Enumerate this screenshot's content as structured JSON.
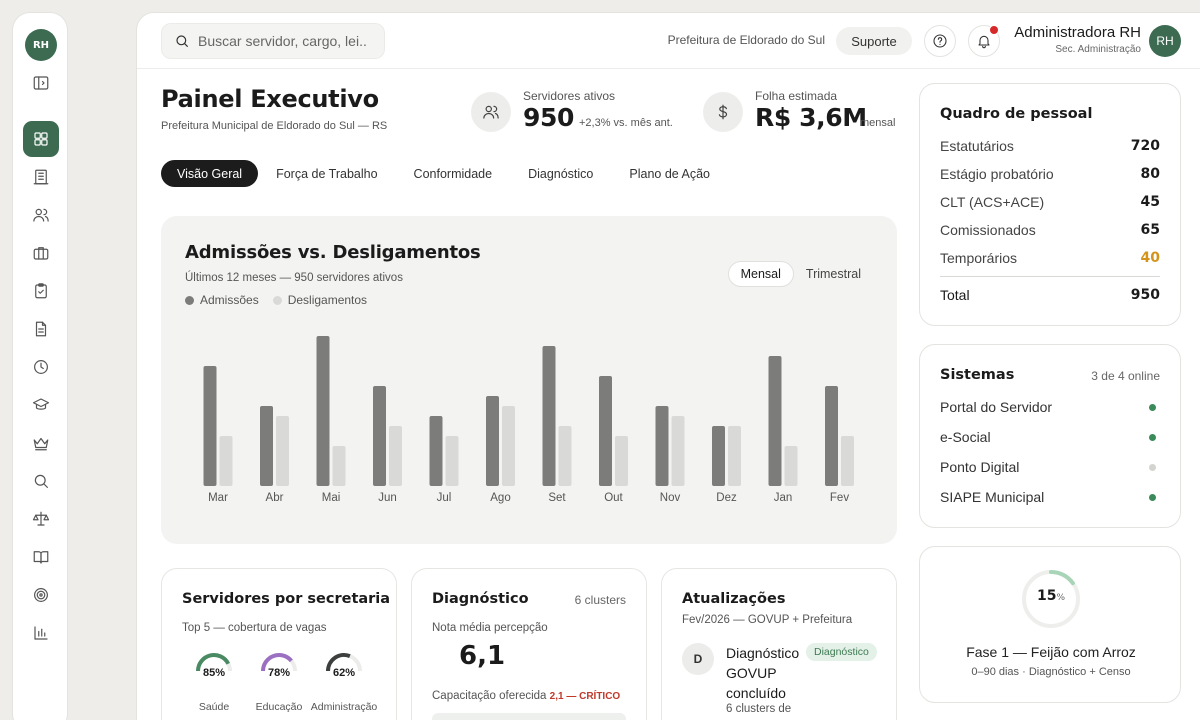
{
  "rail": {
    "avatar": "RH",
    "icons": [
      "sidebar-toggle-icon",
      "dashboard-icon",
      "building-icon",
      "users-icon",
      "briefcase-icon",
      "clipboard-check-icon",
      "document-icon",
      "clock-icon",
      "graduation-cap-icon",
      "crown-icon",
      "search-icon",
      "scale-icon",
      "book-icon",
      "target-icon",
      "bar-chart-icon"
    ]
  },
  "topbar": {
    "search_placeholder": "Buscar servidor, cargo, lei...",
    "municipality": "Prefeitura de Eldorado do Sul",
    "support_label": "Suporte",
    "user_name": "Administradora RH",
    "user_role": "Sec. Administração",
    "user_initials": "RH"
  },
  "header": {
    "title": "Painel Executivo",
    "subtitle": "Prefeitura Municipal de Eldorado do Sul — RS",
    "kpi_active": {
      "label": "Servidores ativos",
      "value": "950",
      "note": "+2,3% vs. mês ant."
    },
    "kpi_payroll": {
      "label": "Folha estimada",
      "value": "R$ 3,6M",
      "note": "mensal"
    }
  },
  "tabs": [
    "Visão Geral",
    "Força de Trabalho",
    "Conformidade",
    "Diagnóstico",
    "Plano de Ação"
  ],
  "chart_card": {
    "title": "Admissões vs. Desligamentos",
    "subtitle": "Últimos 12 meses — 950 servidores ativos",
    "toggle": {
      "active": "Mensal",
      "other": "Trimestral"
    }
  },
  "chart_data": {
    "type": "bar",
    "title": "Admissões vs. Desligamentos",
    "categories": [
      "Mar",
      "Abr",
      "Mai",
      "Jun",
      "Jul",
      "Ago",
      "Set",
      "Out",
      "Nov",
      "Dez",
      "Jan",
      "Fev"
    ],
    "series": [
      {
        "name": "Admissões",
        "color": "#7c7d7b",
        "values": [
          12,
          8,
          15,
          10,
          7,
          9,
          14,
          11,
          8,
          6,
          13,
          10
        ]
      },
      {
        "name": "Desligamentos",
        "color": "#d9dad8",
        "values": [
          5,
          7,
          4,
          6,
          5,
          8,
          6,
          5,
          7,
          6,
          4,
          5
        ]
      }
    ],
    "ylim": [
      0,
      15
    ],
    "grid": false,
    "legend": "top-left"
  },
  "secretarias": {
    "title": "Servidores por secretaria",
    "subtitle": "Top 5 — cobertura de vagas",
    "items": [
      {
        "name": "Saúde",
        "pct": "85%",
        "value": 0.85,
        "color": "#4a8a63"
      },
      {
        "name": "Educação",
        "pct": "78%",
        "value": 0.78,
        "color": "#9b6fc2"
      },
      {
        "name": "Administração",
        "pct": "62%",
        "value": 0.62,
        "color": "#3c3f3d"
      }
    ]
  },
  "diagnostico": {
    "title": "Diagnóstico",
    "meta": "6 clusters",
    "avg_label": "Nota média percepção",
    "avg_value": "6,1",
    "capacity_label": "Capacitação oferecida",
    "capacity_value": "2,1 — CRÍTICO"
  },
  "atualizacoes": {
    "title": "Atualizações",
    "subtitle": "Fev/2026 — GOVUP + Prefeitura",
    "item": {
      "initial": "D",
      "title": "Diagnóstico GOVUP concluído",
      "badge": "Diagnóstico",
      "desc": "6 clusters de"
    }
  },
  "quadro": {
    "title": "Quadro de pessoal",
    "rows": [
      {
        "label": "Estatutários",
        "value": "720",
        "color": "#1b1b1b"
      },
      {
        "label": "Estágio probatório",
        "value": "80",
        "color": "#1b1b1b"
      },
      {
        "label": "CLT (ACS+ACE)",
        "value": "45",
        "color": "#1b1b1b"
      },
      {
        "label": "Comissionados",
        "value": "65",
        "color": "#1b1b1b"
      },
      {
        "label": "Temporários",
        "value": "40",
        "color": "#d4941c"
      }
    ],
    "total_label": "Total",
    "total_value": "950"
  },
  "sistemas": {
    "title": "Sistemas",
    "meta": "3 de 4 online",
    "items": [
      {
        "name": "Portal do Servidor",
        "status": "online",
        "color": "#3a8a5a"
      },
      {
        "name": "e-Social",
        "status": "online",
        "color": "#3a8a5a"
      },
      {
        "name": "Ponto Digital",
        "status": "offline",
        "color": "#d3d3d0"
      },
      {
        "name": "SIAPE Municipal",
        "status": "online",
        "color": "#3a8a5a"
      }
    ]
  },
  "fase": {
    "pct": "15",
    "pct_symbol": "%",
    "value": 0.15,
    "title": "Fase 1 — Feijão com Arroz",
    "subtitle": "0–90 dias · Diagnóstico + Censo"
  }
}
